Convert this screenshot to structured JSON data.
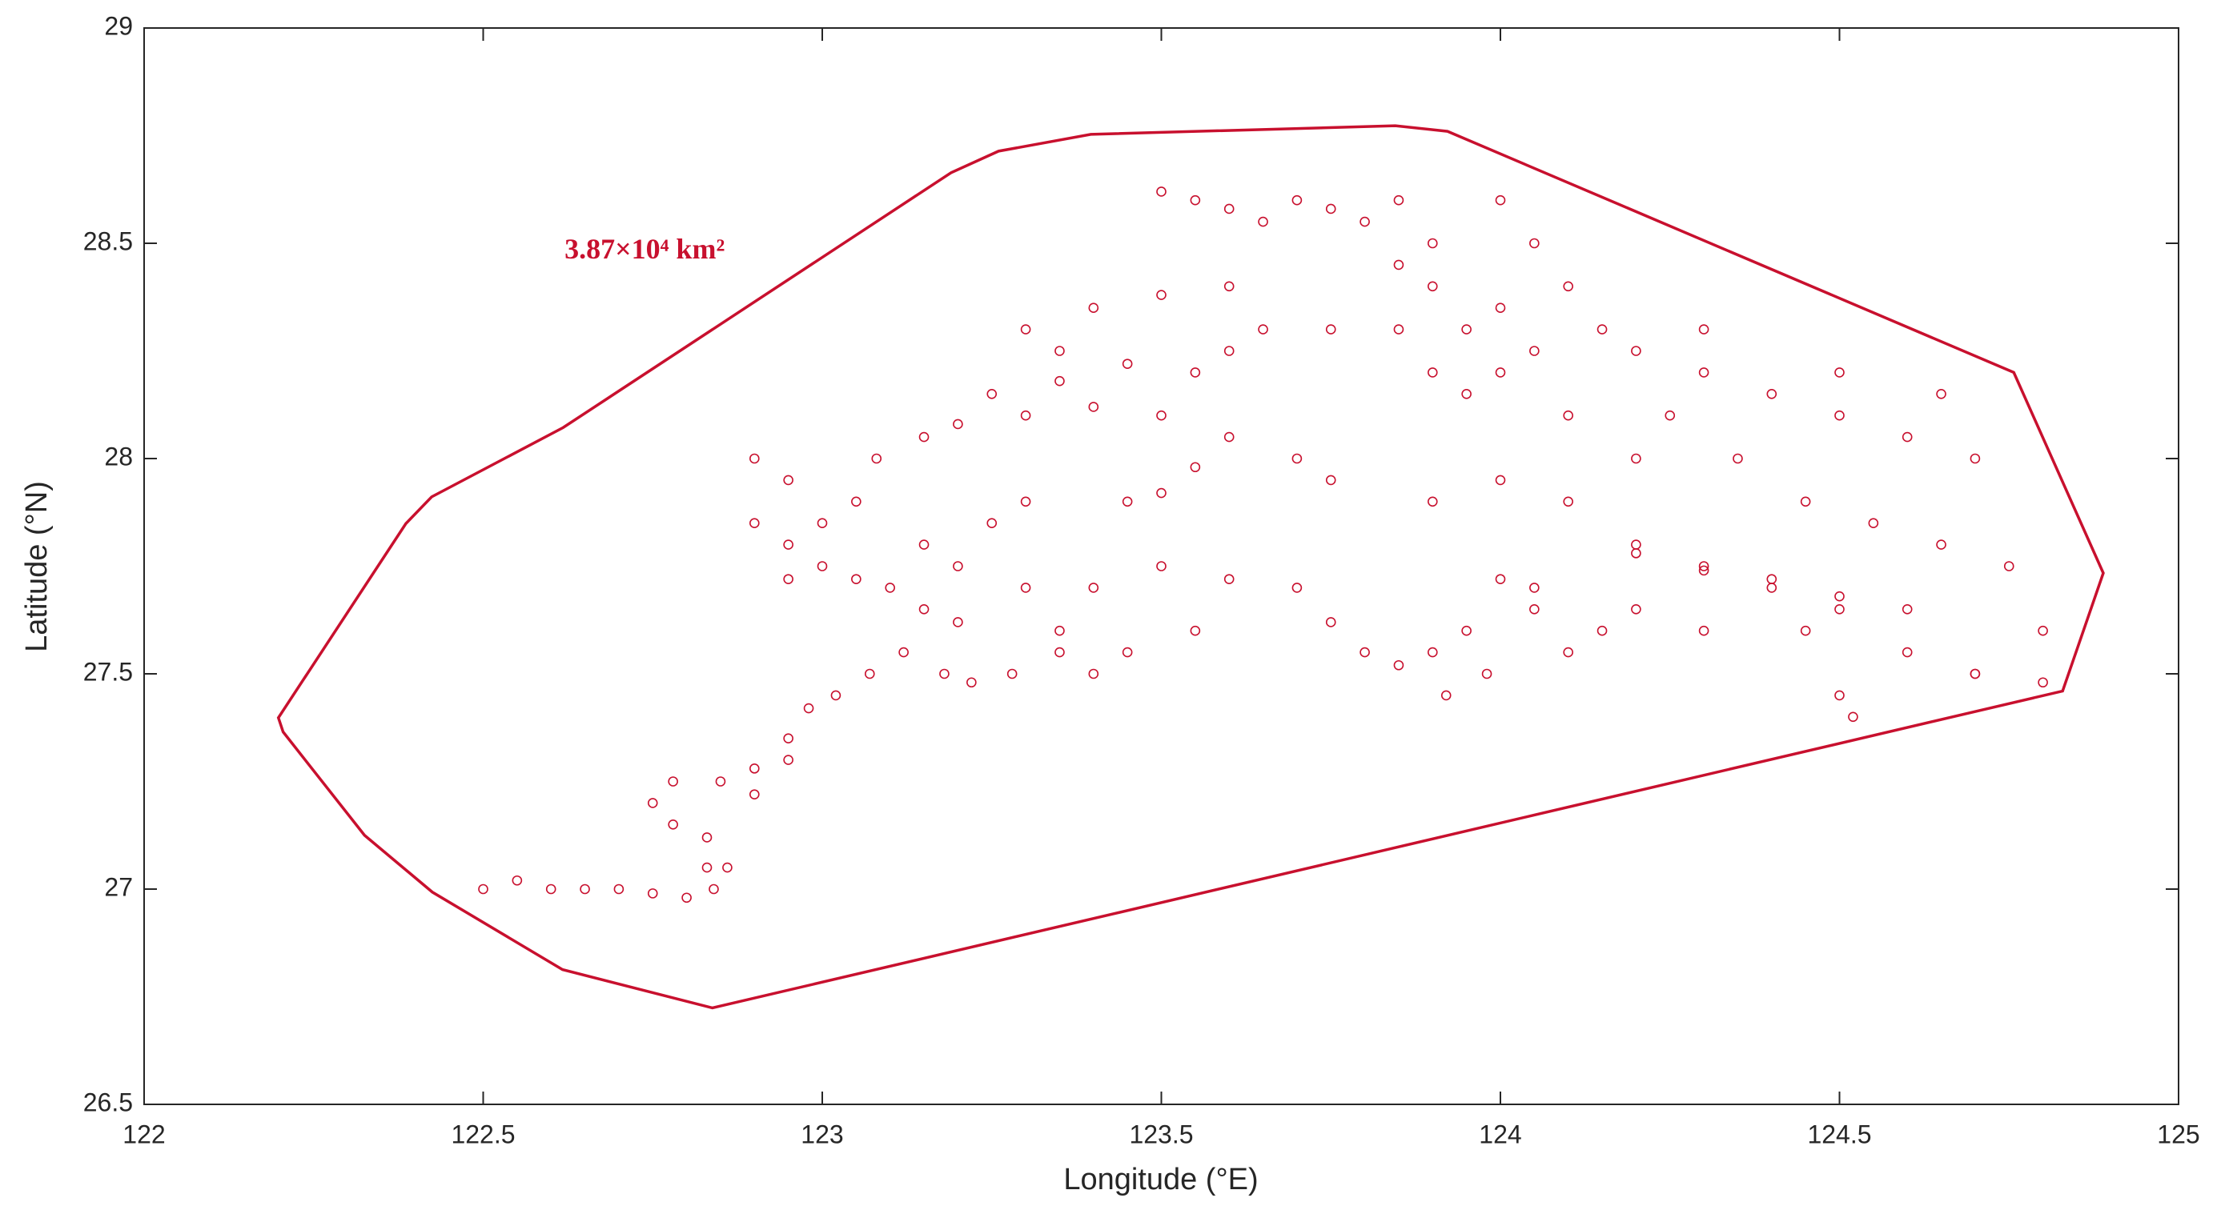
{
  "chart_data": {
    "type": "scatter",
    "xlabel": "Longitude (°E)",
    "ylabel": "Latitude (°N)",
    "annotation": "3.87×10⁴ km²",
    "xlim": [
      122,
      125
    ],
    "ylim": [
      26.5,
      29
    ],
    "xticks": [
      122,
      122.5,
      123,
      123.5,
      124,
      124.5,
      125
    ],
    "yticks": [
      26.5,
      27,
      27.5,
      28,
      28.5,
      29
    ],
    "series": [
      {
        "type": "scatter",
        "color": "#c8102e",
        "x": [
          122.5,
          122.55,
          122.6,
          122.65,
          122.7,
          122.75,
          122.8,
          122.84,
          122.86,
          122.83,
          122.78,
          122.75,
          122.78,
          122.85,
          122.9,
          122.95,
          122.98,
          123.02,
          123.07,
          123.12,
          123.18,
          123.22,
          123.28,
          123.35,
          123.4,
          122.95,
          122.9,
          122.83,
          122.95,
          123.0,
          123.05,
          123.1,
          123.15,
          123.2,
          122.9,
          122.95,
          123.0,
          122.9,
          122.95,
          123.05,
          123.15,
          123.2,
          123.25,
          123.3,
          123.08,
          123.15,
          123.2,
          123.3,
          123.4,
          123.5,
          123.6,
          123.7,
          123.75,
          123.5,
          123.45,
          123.55,
          123.3,
          123.35,
          123.45,
          123.55,
          123.6,
          123.25,
          123.35,
          123.65,
          123.75,
          123.85,
          123.4,
          123.5,
          123.6,
          123.5,
          123.55,
          123.6,
          123.65,
          123.7,
          123.75,
          123.8,
          123.85,
          123.9,
          123.85,
          123.9,
          123.95,
          124.0,
          123.95,
          123.9,
          124.05,
          124.0,
          124.1,
          124.05,
          124.0,
          124.15,
          124.2,
          124.3,
          124.4,
          124.5,
          124.6,
          124.7,
          124.25,
          124.35,
          124.45,
          124.55,
          124.65,
          124.75,
          124.8,
          124.7,
          124.6,
          124.5,
          124.2,
          124.1,
          124.0,
          123.9,
          124.05,
          124.15,
          124.3,
          124.4,
          124.1,
          124.2,
          124.3,
          124.5,
          124.65,
          123.4,
          123.5,
          123.6,
          123.7,
          123.75,
          123.8,
          123.85,
          123.9,
          123.95,
          123.98,
          123.92,
          124.0,
          124.05,
          124.1,
          124.2,
          124.3,
          124.4,
          124.5,
          124.6,
          124.52,
          124.5,
          124.45,
          124.3,
          124.2,
          124.7,
          124.8,
          123.45,
          123.35,
          123.3,
          123.55
        ],
        "y": [
          27.0,
          27.02,
          27.0,
          27.0,
          27.0,
          26.99,
          26.98,
          27.0,
          27.05,
          27.12,
          27.15,
          27.2,
          27.25,
          27.25,
          27.28,
          27.35,
          27.42,
          27.45,
          27.5,
          27.55,
          27.5,
          27.48,
          27.5,
          27.55,
          27.5,
          27.3,
          27.22,
          27.05,
          27.72,
          27.75,
          27.72,
          27.7,
          27.65,
          27.62,
          27.85,
          27.8,
          27.85,
          28.0,
          27.95,
          27.9,
          27.8,
          27.75,
          27.85,
          27.9,
          28.0,
          28.05,
          28.08,
          28.1,
          28.12,
          28.1,
          28.05,
          28.0,
          27.95,
          27.92,
          27.9,
          27.98,
          28.3,
          28.25,
          28.22,
          28.2,
          28.25,
          28.15,
          28.18,
          28.3,
          28.3,
          28.3,
          28.35,
          28.38,
          28.4,
          28.62,
          28.6,
          28.58,
          28.55,
          28.6,
          28.58,
          28.55,
          28.6,
          28.5,
          28.45,
          28.4,
          28.3,
          28.2,
          28.15,
          28.2,
          28.25,
          28.35,
          28.4,
          28.5,
          28.6,
          28.3,
          28.25,
          28.2,
          28.15,
          28.1,
          28.05,
          28.0,
          28.1,
          28.0,
          27.9,
          27.85,
          27.8,
          27.75,
          27.6,
          27.5,
          27.55,
          27.65,
          27.8,
          27.9,
          27.95,
          27.9,
          27.7,
          27.6,
          27.75,
          27.7,
          28.1,
          28.0,
          28.3,
          28.2,
          28.15,
          27.7,
          27.75,
          27.72,
          27.7,
          27.62,
          27.55,
          27.52,
          27.55,
          27.6,
          27.5,
          27.45,
          27.72,
          27.65,
          27.55,
          27.78,
          27.74,
          27.72,
          27.68,
          27.65,
          27.4,
          27.45,
          27.6,
          27.6,
          27.65,
          27.5,
          27.48,
          27.55,
          27.6,
          27.7,
          27.6
        ]
      },
      {
        "type": "line",
        "color": "#c8102e",
        "x": [
          122.198,
          122.205,
          122.325,
          122.425,
          122.617,
          122.838,
          124.829,
          124.889,
          124.757,
          123.922,
          123.845,
          123.396,
          123.26,
          123.19,
          122.618,
          122.424,
          122.386
        ],
        "y": [
          27.398,
          27.365,
          27.125,
          26.993,
          26.813,
          26.724,
          27.46,
          27.734,
          28.2,
          28.76,
          28.773,
          28.753,
          28.714,
          28.664,
          28.072,
          27.911,
          27.849
        ]
      }
    ]
  }
}
